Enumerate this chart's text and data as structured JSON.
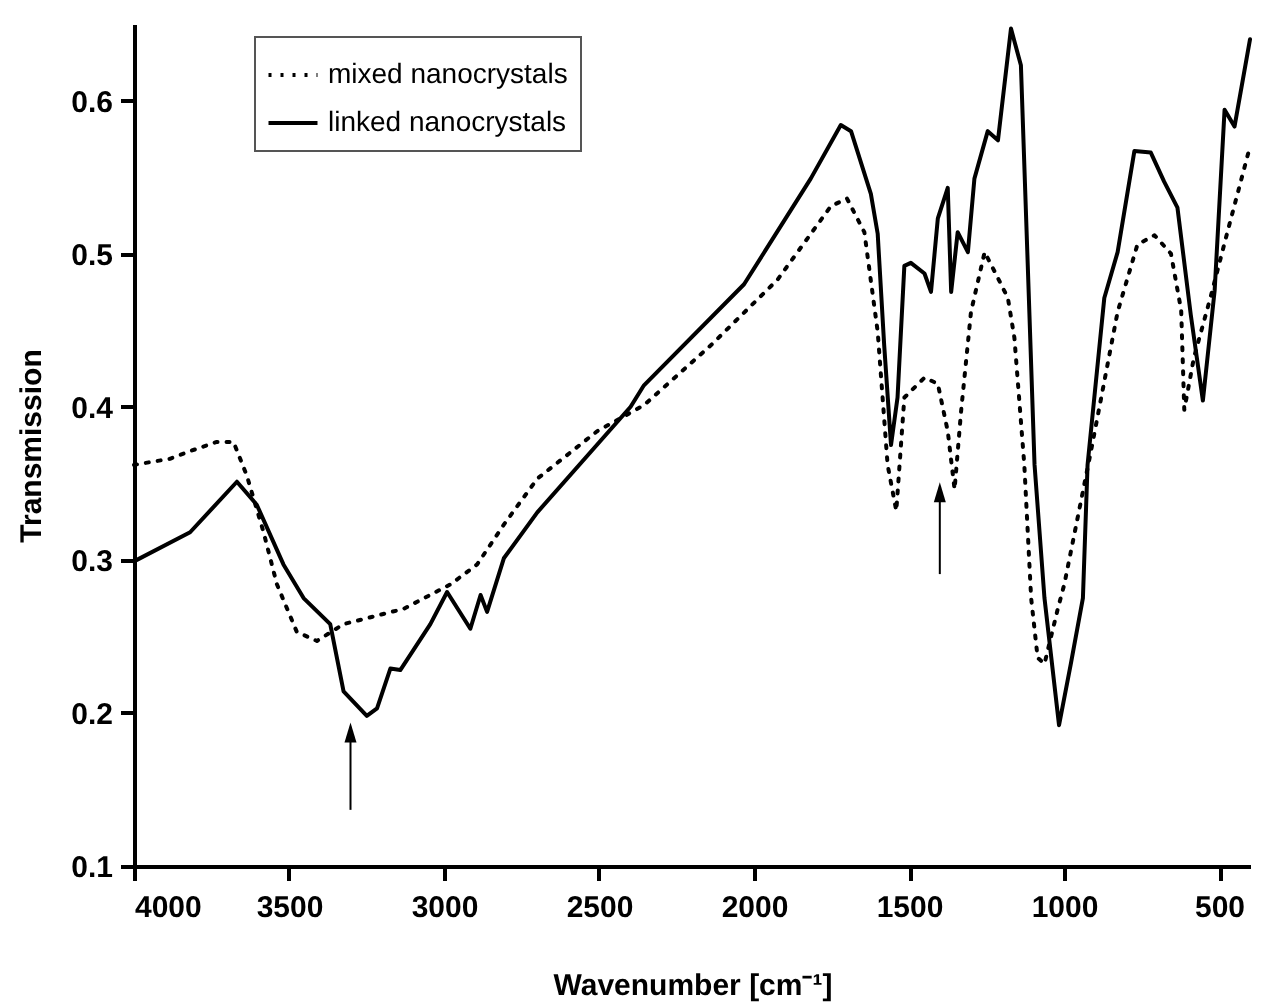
{
  "chart_data": {
    "type": "line",
    "xlabel": "Wavenumber [cm⁻¹]",
    "ylabel": "Transmission",
    "xlim": [
      4000,
      400
    ],
    "xticks": [
      4000,
      3500,
      3000,
      2500,
      2000,
      1500,
      1000,
      500
    ],
    "ylim": [
      0.1,
      0.65
    ],
    "yticks": [
      0.1,
      0.2,
      0.3,
      0.4,
      0.5,
      0.6
    ],
    "grid": false,
    "legend": "top left",
    "series": [
      {
        "name": "mixed nanocrystals",
        "color": "#000000",
        "line_style": "dotted",
        "x": [
          4000,
          3884,
          3819,
          3733,
          3679,
          3636,
          3582,
          3539,
          3475,
          3410,
          3324,
          3130,
          2979,
          2893,
          2807,
          2699,
          2506,
          2355,
          2140,
          1924,
          1752,
          1700,
          1644,
          1601,
          1569,
          1541,
          1515,
          1450,
          1407,
          1375,
          1353,
          1332,
          1300,
          1256,
          1213,
          1181,
          1160,
          1128,
          1106,
          1085,
          1063,
          1020,
          999,
          913,
          827,
          763,
          708,
          655,
          622,
          612,
          581,
          528,
          473,
          400
        ],
        "values": [
          0.362,
          0.366,
          0.371,
          0.377,
          0.377,
          0.355,
          0.318,
          0.284,
          0.253,
          0.247,
          0.258,
          0.268,
          0.284,
          0.297,
          0.323,
          0.353,
          0.384,
          0.401,
          0.44,
          0.483,
          0.531,
          0.536,
          0.514,
          0.449,
          0.362,
          0.332,
          0.406,
          0.419,
          0.415,
          0.384,
          0.346,
          0.397,
          0.462,
          0.501,
          0.484,
          0.471,
          0.445,
          0.362,
          0.275,
          0.236,
          0.232,
          0.268,
          0.284,
          0.371,
          0.462,
          0.506,
          0.512,
          0.5,
          0.463,
          0.398,
          0.432,
          0.471,
          0.514,
          0.57
        ]
      },
      {
        "name": "linked nanocrystals",
        "color": "#000000",
        "line_style": "solid",
        "x": [
          4000,
          3819,
          3668,
          3604,
          3518,
          3453,
          3367,
          3324,
          3249,
          3216,
          3173,
          3141,
          3044,
          2990,
          2915,
          2882,
          2861,
          2807,
          2699,
          2398,
          2355,
          2032,
          1817,
          1720,
          1687,
          1623,
          1601,
          1580,
          1558,
          1537,
          1515,
          1494,
          1450,
          1429,
          1407,
          1375,
          1364,
          1343,
          1310,
          1289,
          1246,
          1213,
          1171,
          1139,
          1117,
          1095,
          1063,
          1016,
          978,
          939,
          924,
          870,
          827,
          773,
          720,
          677,
          634,
          591,
          552,
          514,
          482,
          450,
          400
        ],
        "values": [
          0.299,
          0.318,
          0.351,
          0.336,
          0.297,
          0.275,
          0.258,
          0.214,
          0.198,
          0.203,
          0.229,
          0.228,
          0.258,
          0.279,
          0.255,
          0.277,
          0.266,
          0.301,
          0.331,
          0.4,
          0.414,
          0.48,
          0.549,
          0.584,
          0.58,
          0.539,
          0.513,
          0.44,
          0.375,
          0.406,
          0.492,
          0.494,
          0.487,
          0.475,
          0.523,
          0.543,
          0.475,
          0.514,
          0.501,
          0.549,
          0.58,
          0.574,
          0.647,
          0.623,
          0.493,
          0.362,
          0.275,
          0.192,
          0.232,
          0.275,
          0.362,
          0.471,
          0.501,
          0.567,
          0.566,
          0.547,
          0.53,
          0.46,
          0.404,
          0.476,
          0.594,
          0.583,
          0.64
        ]
      }
    ]
  }
}
